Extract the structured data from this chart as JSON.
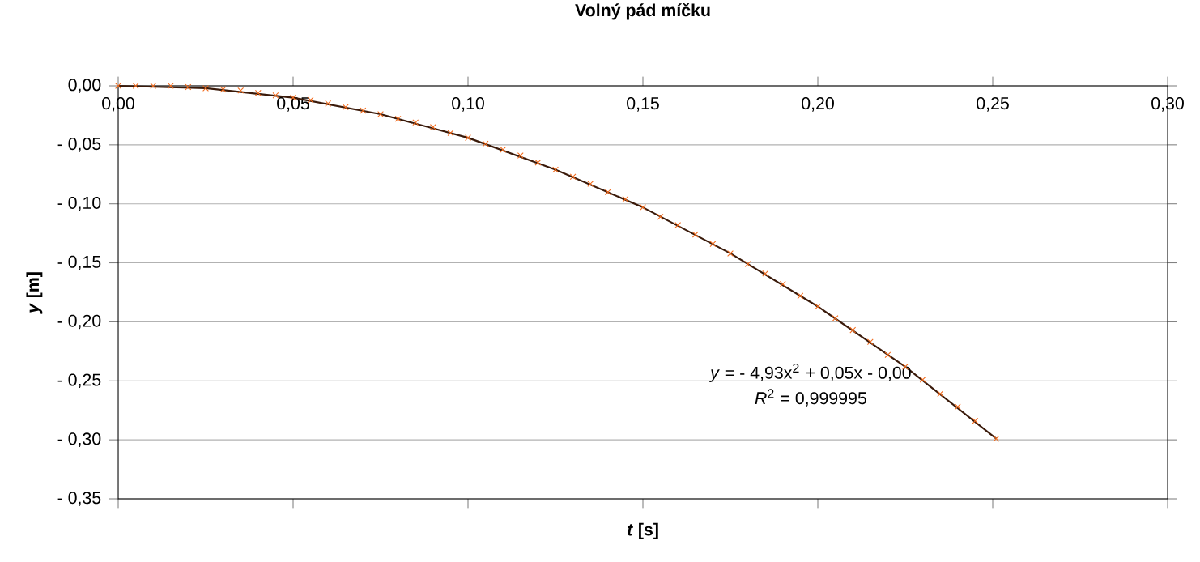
{
  "chart_data": {
    "type": "scatter",
    "title": "Volný pád míčku",
    "xlabel": "*t* [s]",
    "ylabel": "*y* [m]",
    "xlim": [
      0,
      0.3
    ],
    "ylim": [
      -0.35,
      0
    ],
    "xticks": [
      {
        "value": 0,
        "label": "0,00"
      },
      {
        "value": 0.05,
        "label": "0,05"
      },
      {
        "value": 0.1,
        "label": "0,10"
      },
      {
        "value": 0.15,
        "label": "0,15"
      },
      {
        "value": 0.2,
        "label": "0,20"
      },
      {
        "value": 0.25,
        "label": "0,25"
      },
      {
        "value": 0.3,
        "label": "0,30"
      }
    ],
    "yticks": [
      {
        "value": 0,
        "label": "0,00"
      },
      {
        "value": -0.05,
        "label": "- 0,05"
      },
      {
        "value": -0.1,
        "label": "- 0,10"
      },
      {
        "value": -0.15,
        "label": "- 0,15"
      },
      {
        "value": -0.2,
        "label": "- 0,20"
      },
      {
        "value": -0.25,
        "label": "- 0,25"
      },
      {
        "value": -0.3,
        "label": "- 0,30"
      },
      {
        "value": -0.35,
        "label": "- 0,35"
      }
    ],
    "grid": "y",
    "marker": "cross",
    "series": [
      {
        "color": "#f26b1d",
        "x": [
          0,
          0.005,
          0.01,
          0.015,
          0.02,
          0.025,
          0.03,
          0.035,
          0.04,
          0.045,
          0.05,
          0.055,
          0.06,
          0.065,
          0.07,
          0.075,
          0.08,
          0.085,
          0.09,
          0.095,
          0.1,
          0.105,
          0.11,
          0.115,
          0.12,
          0.125,
          0.13,
          0.135,
          0.14,
          0.145,
          0.15,
          0.155,
          0.16,
          0.165,
          0.17,
          0.175,
          0.18,
          0.185,
          0.19,
          0.195,
          0.2,
          0.205,
          0.21,
          0.215,
          0.22,
          0.225,
          0.23,
          0.235,
          0.24,
          0.245,
          0.251
        ],
        "values": [
          0,
          0,
          0,
          0,
          -0.001,
          -0.002,
          -0.003,
          -0.004,
          -0.006,
          -0.008,
          -0.01,
          -0.012,
          -0.015,
          -0.018,
          -0.021,
          -0.024,
          -0.028,
          -0.031,
          -0.035,
          -0.04,
          -0.044,
          -0.049,
          -0.054,
          -0.059,
          -0.065,
          -0.071,
          -0.077,
          -0.083,
          -0.09,
          -0.096,
          -0.103,
          -0.111,
          -0.118,
          -0.126,
          -0.134,
          -0.142,
          -0.151,
          -0.159,
          -0.168,
          -0.178,
          -0.187,
          -0.197,
          -0.207,
          -0.217,
          -0.228,
          -0.238,
          -0.249,
          -0.261,
          -0.272,
          -0.284,
          -0.299
        ]
      },
      {
        "type": "line",
        "marker": "none",
        "color": "#3a1a0a",
        "x": [
          0,
          0.025,
          0.05,
          0.075,
          0.1,
          0.125,
          0.15,
          0.175,
          0.2,
          0.225,
          0.251
        ],
        "values": [
          0,
          -0.002,
          -0.01,
          -0.024,
          -0.044,
          -0.071,
          -0.103,
          -0.142,
          -0.187,
          -0.238,
          -0.299
        ]
      }
    ],
    "annotations": [
      "*y* = - 4,93x$^{2}$ + 0,05x -  0,00",
      "*R*$^{2}$ = 0,999995"
    ]
  }
}
